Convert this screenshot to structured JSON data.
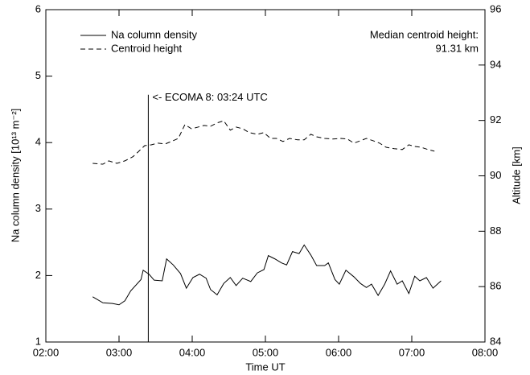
{
  "chart_data": {
    "type": "line",
    "xlabel": "Time UT",
    "ylabel": "Na column density [10¹³ m⁻²]",
    "y2label": "Altitude [km]",
    "xlim": [
      2,
      8
    ],
    "xticks": [
      {
        "value": 2,
        "label": "02:00"
      },
      {
        "value": 3,
        "label": "03:00"
      },
      {
        "value": 4,
        "label": "04:00"
      },
      {
        "value": 5,
        "label": "05:00"
      },
      {
        "value": 6,
        "label": "06:00"
      },
      {
        "value": 7,
        "label": "07:00"
      },
      {
        "value": 8,
        "label": "08:00"
      }
    ],
    "ylim": [
      1,
      6
    ],
    "yticks": [
      1,
      2,
      3,
      4,
      5,
      6
    ],
    "y2lim": [
      84,
      96
    ],
    "y2ticks": [
      84,
      86,
      88,
      90,
      92,
      94,
      96
    ],
    "legend": "upper left",
    "series": [
      {
        "name": "Na column density",
        "color": "#000000",
        "dash": "solid",
        "x": [
          2.64,
          2.78,
          2.91,
          3.0,
          3.08,
          3.16,
          3.3,
          3.33,
          3.41,
          3.48,
          3.59,
          3.65,
          3.74,
          3.84,
          3.92,
          4.01,
          4.1,
          4.19,
          4.25,
          4.34,
          4.43,
          4.52,
          4.6,
          4.69,
          4.8,
          4.89,
          4.98,
          5.04,
          5.13,
          5.22,
          5.29,
          5.37,
          5.46,
          5.53,
          5.62,
          5.7,
          5.81,
          5.86,
          5.95,
          6.01,
          6.1,
          6.21,
          6.3,
          6.38,
          6.45,
          6.54,
          6.63,
          6.71,
          6.8,
          6.87,
          6.96,
          7.04,
          7.11,
          7.2,
          7.29,
          7.4
        ],
        "values": [
          1.68,
          1.59,
          1.58,
          1.56,
          1.62,
          1.77,
          1.94,
          2.08,
          2.02,
          1.93,
          1.92,
          2.25,
          2.16,
          2.03,
          1.81,
          1.97,
          2.02,
          1.96,
          1.79,
          1.71,
          1.88,
          1.97,
          1.85,
          1.96,
          1.91,
          2.04,
          2.09,
          2.3,
          2.25,
          2.19,
          2.16,
          2.36,
          2.33,
          2.46,
          2.31,
          2.15,
          2.15,
          2.19,
          1.94,
          1.87,
          2.08,
          1.98,
          1.88,
          1.82,
          1.87,
          1.7,
          1.87,
          2.07,
          1.87,
          1.92,
          1.73,
          1.99,
          1.92,
          1.97,
          1.81,
          1.92
        ]
      },
      {
        "name": "Centroid height",
        "color": "#000000",
        "dash": "dashed",
        "axis": "y2",
        "x": [
          2.64,
          2.78,
          2.86,
          2.97,
          3.08,
          3.19,
          3.26,
          3.35,
          3.44,
          3.53,
          3.63,
          3.74,
          3.81,
          3.9,
          3.99,
          4.08,
          4.16,
          4.25,
          4.34,
          4.43,
          4.52,
          4.6,
          4.69,
          4.78,
          4.89,
          4.98,
          5.07,
          5.15,
          5.24,
          5.33,
          5.44,
          5.53,
          5.62,
          5.7,
          5.81,
          5.92,
          6.03,
          6.12,
          6.21,
          6.3,
          6.38,
          6.47,
          6.56,
          6.65,
          6.76,
          6.87,
          6.96,
          7.04,
          7.13,
          7.22,
          7.31
        ],
        "values": [
          90.45,
          90.42,
          90.54,
          90.45,
          90.54,
          90.69,
          90.86,
          91.09,
          91.12,
          91.18,
          91.15,
          91.27,
          91.35,
          91.85,
          91.7,
          91.76,
          91.82,
          91.79,
          91.91,
          91.99,
          91.65,
          91.76,
          91.7,
          91.56,
          91.5,
          91.56,
          91.35,
          91.35,
          91.24,
          91.35,
          91.3,
          91.3,
          91.5,
          91.41,
          91.35,
          91.33,
          91.35,
          91.33,
          91.18,
          91.27,
          91.35,
          91.27,
          91.18,
          91.03,
          90.98,
          90.95,
          91.12,
          91.06,
          91.03,
          90.95,
          90.89
        ]
      }
    ],
    "annotations": [
      {
        "text": "<- ECOMA 8: 03:24 UTC",
        "x": 3.4,
        "y": 4.72
      },
      {
        "text": "Median centroid height:"
      },
      {
        "text": "91.31  km"
      }
    ]
  }
}
